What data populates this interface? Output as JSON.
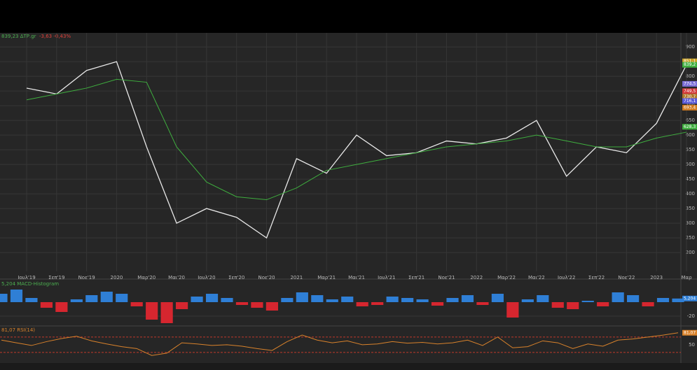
{
  "chart_data": [
    {
      "type": "line",
      "title": "839,23 ΔΤΡ.gr",
      "change": "-3,63 -0,43%",
      "categories": [
        "Ιουλ'19",
        "Σεπ'19",
        "Νοε'19",
        "2020",
        "Μαρ'20",
        "Μαι'20",
        "Ιουλ'20",
        "Σεπ'20",
        "Νοε'20",
        "2021",
        "Μαρ'21",
        "Μαι'21",
        "Ιουλ'21",
        "Σεπ'21",
        "Νοε'21",
        "2022",
        "Μαρ'22",
        "Μαι'22",
        "Ιουλ'22",
        "Σεπ'22",
        "Νοε'22",
        "2023",
        "Μαρ"
      ],
      "series": [
        {
          "color": "#e9e9e9",
          "values": [
            760,
            740,
            820,
            850,
            560,
            300,
            350,
            320,
            250,
            520,
            470,
            600,
            530,
            540,
            580,
            570,
            590,
            650,
            460,
            560,
            540,
            640,
            839.23
          ]
        },
        {
          "color": "#3fae3f",
          "values": [
            720,
            740,
            760,
            790,
            780,
            560,
            440,
            390,
            380,
            420,
            480,
            500,
            520,
            540,
            560,
            570,
            580,
            600,
            580,
            560,
            560,
            590,
            610
          ]
        }
      ],
      "ylim": [
        136,
        948
      ],
      "yticks": [
        200,
        250,
        300,
        350,
        400,
        450,
        500,
        550,
        600,
        650,
        700,
        750,
        800,
        850,
        900
      ],
      "grid": true,
      "price_tags": [
        {
          "value": 851.1,
          "label": "851,1",
          "color": "#c9a227"
        },
        {
          "value": 839.23,
          "label": "839,2",
          "color": "#3fae3f"
        },
        {
          "value": 774.5,
          "label": "774,5",
          "color": "#7b6fd6"
        },
        {
          "value": 749.5,
          "label": "749,5",
          "color": "#d23c3c"
        },
        {
          "value": 730.7,
          "label": "730,7",
          "color": "#b07a2a"
        },
        {
          "value": 716.1,
          "label": "716,1",
          "color": "#5a5ad8"
        },
        {
          "value": 693.4,
          "label": "693,4",
          "color": "#d07a20"
        },
        {
          "value": 628.3,
          "label": "628,3",
          "color": "#3fae3f"
        }
      ]
    },
    {
      "type": "bar",
      "title": "5,204 MACD-Histogram",
      "pos_color": "#2f7fd6",
      "neg_color": "#d6262f",
      "values": [
        12,
        18,
        6,
        -8,
        -14,
        4,
        10,
        15,
        12,
        -6,
        -25,
        -30,
        -10,
        8,
        12,
        6,
        -4,
        -8,
        -12,
        6,
        14,
        10,
        4,
        8,
        -6,
        -4,
        8,
        6,
        4,
        -5,
        6,
        10,
        -4,
        12,
        -22,
        4,
        10,
        -8,
        -10,
        2,
        -6,
        14,
        10,
        -6,
        6,
        5.204
      ],
      "ylim": [
        -33,
        30
      ],
      "yticks": [
        -20
      ],
      "grid": true,
      "last_tag": {
        "value": 5.204,
        "label": "5,204"
      }
    },
    {
      "type": "line",
      "title": "81,07 RSI(14)",
      "color": "#d9822b",
      "values": [
        62,
        55,
        48,
        58,
        66,
        72,
        60,
        52,
        45,
        40,
        22,
        28,
        55,
        52,
        48,
        50,
        46,
        40,
        35,
        58,
        75,
        62,
        55,
        60,
        50,
        52,
        58,
        54,
        56,
        52,
        55,
        62,
        48,
        70,
        42,
        45,
        60,
        55,
        40,
        52,
        46,
        62,
        65,
        70,
        75,
        81.07
      ],
      "ylim": [
        6,
        97
      ],
      "yticks": [
        50
      ],
      "bands": [
        30,
        70
      ],
      "band_color": "#c0392b",
      "last_tag": {
        "value": 81.07,
        "label": "81,07"
      }
    }
  ]
}
